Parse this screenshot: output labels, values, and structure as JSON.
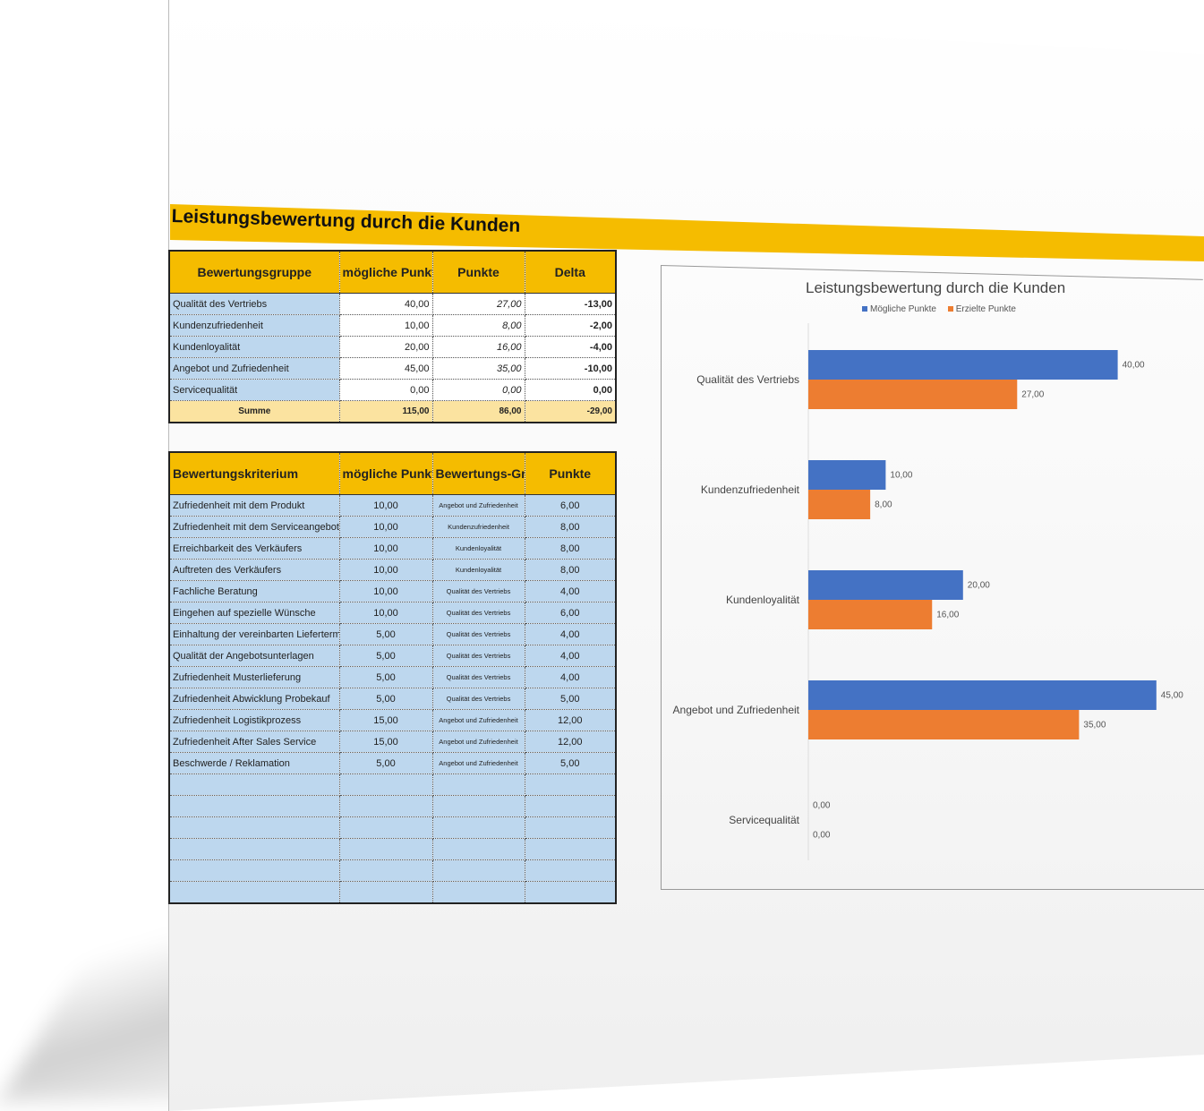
{
  "title": "Leistungsbewertung durch die Kunden",
  "table1": {
    "headers": [
      "Bewertungsgruppe",
      "mögliche Punkte",
      "Punkte",
      "Delta"
    ],
    "rows": [
      {
        "name": "Qualität des Vertriebs",
        "possible": "40,00",
        "points": "27,00",
        "delta": "-13,00"
      },
      {
        "name": "Kundenzufriedenheit",
        "possible": "10,00",
        "points": "8,00",
        "delta": "-2,00"
      },
      {
        "name": "Kundenloyalität",
        "possible": "20,00",
        "points": "16,00",
        "delta": "-4,00"
      },
      {
        "name": "Angebot und Zufriedenheit",
        "possible": "45,00",
        "points": "35,00",
        "delta": "-10,00"
      },
      {
        "name": "Servicequalität",
        "possible": "0,00",
        "points": "0,00",
        "delta": "0,00"
      }
    ],
    "sum": {
      "label": "Summe",
      "possible": "115,00",
      "points": "86,00",
      "delta": "-29,00"
    }
  },
  "table2": {
    "headers": [
      "Bewertungskriterium",
      "mögliche Punkte",
      "Bewertungs-Gruppe",
      "Punkte"
    ],
    "rows": [
      {
        "name": "Zufriedenheit mit dem Produkt",
        "possible": "10,00",
        "group": "Angebot und Zufriedenheit",
        "points": "6,00"
      },
      {
        "name": "Zufriedenheit mit dem Serviceangebot",
        "possible": "10,00",
        "group": "Kundenzufriedenheit",
        "points": "8,00"
      },
      {
        "name": "Erreichbarkeit des Verkäufers",
        "possible": "10,00",
        "group": "Kundenloyalität",
        "points": "8,00"
      },
      {
        "name": "Auftreten des Verkäufers",
        "possible": "10,00",
        "group": "Kundenloyalität",
        "points": "8,00"
      },
      {
        "name": "Fachliche Beratung",
        "possible": "10,00",
        "group": "Qualität des Vertriebs",
        "points": "4,00"
      },
      {
        "name": "Eingehen auf spezielle Wünsche",
        "possible": "10,00",
        "group": "Qualität des Vertriebs",
        "points": "6,00"
      },
      {
        "name": "Einhaltung der vereinbarten Liefertermin",
        "possible": "5,00",
        "group": "Qualität des Vertriebs",
        "points": "4,00"
      },
      {
        "name": "Qualität der Angebotsunterlagen",
        "possible": "5,00",
        "group": "Qualität des Vertriebs",
        "points": "4,00"
      },
      {
        "name": "Zufriedenheit Musterlieferung",
        "possible": "5,00",
        "group": "Qualität des Vertriebs",
        "points": "4,00"
      },
      {
        "name": "Zufriedenheit Abwicklung Probekauf",
        "possible": "5,00",
        "group": "Qualität des Vertriebs",
        "points": "5,00"
      },
      {
        "name": "Zufriedenheit Logistikprozess",
        "possible": "15,00",
        "group": "Angebot und Zufriedenheit",
        "points": "12,00"
      },
      {
        "name": "Zufriedenheit After Sales Service",
        "possible": "15,00",
        "group": "Angebot und Zufriedenheit",
        "points": "12,00"
      },
      {
        "name": "Beschwerde / Reklamation",
        "possible": "5,00",
        "group": "Angebot und Zufriedenheit",
        "points": "5,00"
      }
    ],
    "empty_rows": 6
  },
  "chart_data": {
    "type": "bar",
    "orientation": "horizontal",
    "title": "Leistungsbewertung durch die Kunden",
    "categories": [
      "Qualität des Vertriebs",
      "Kundenzufriedenheit",
      "Kundenloyalität",
      "Angebot und Zufriedenheit",
      "Servicequalität"
    ],
    "series": [
      {
        "name": "Mögliche Punkte",
        "color": "#4472c4",
        "values": [
          40,
          10,
          20,
          45,
          0
        ],
        "labels": [
          "40,00",
          "10,00",
          "20,00",
          "45,00",
          "0,00"
        ]
      },
      {
        "name": "Erzielte Punkte",
        "color": "#ed7d31",
        "values": [
          27,
          8,
          16,
          35,
          0
        ],
        "labels": [
          "27,00",
          "8,00",
          "16,00",
          "35,00",
          "0,00"
        ]
      }
    ],
    "xlim": [
      0,
      50
    ],
    "legend": "top",
    "grid": false
  }
}
